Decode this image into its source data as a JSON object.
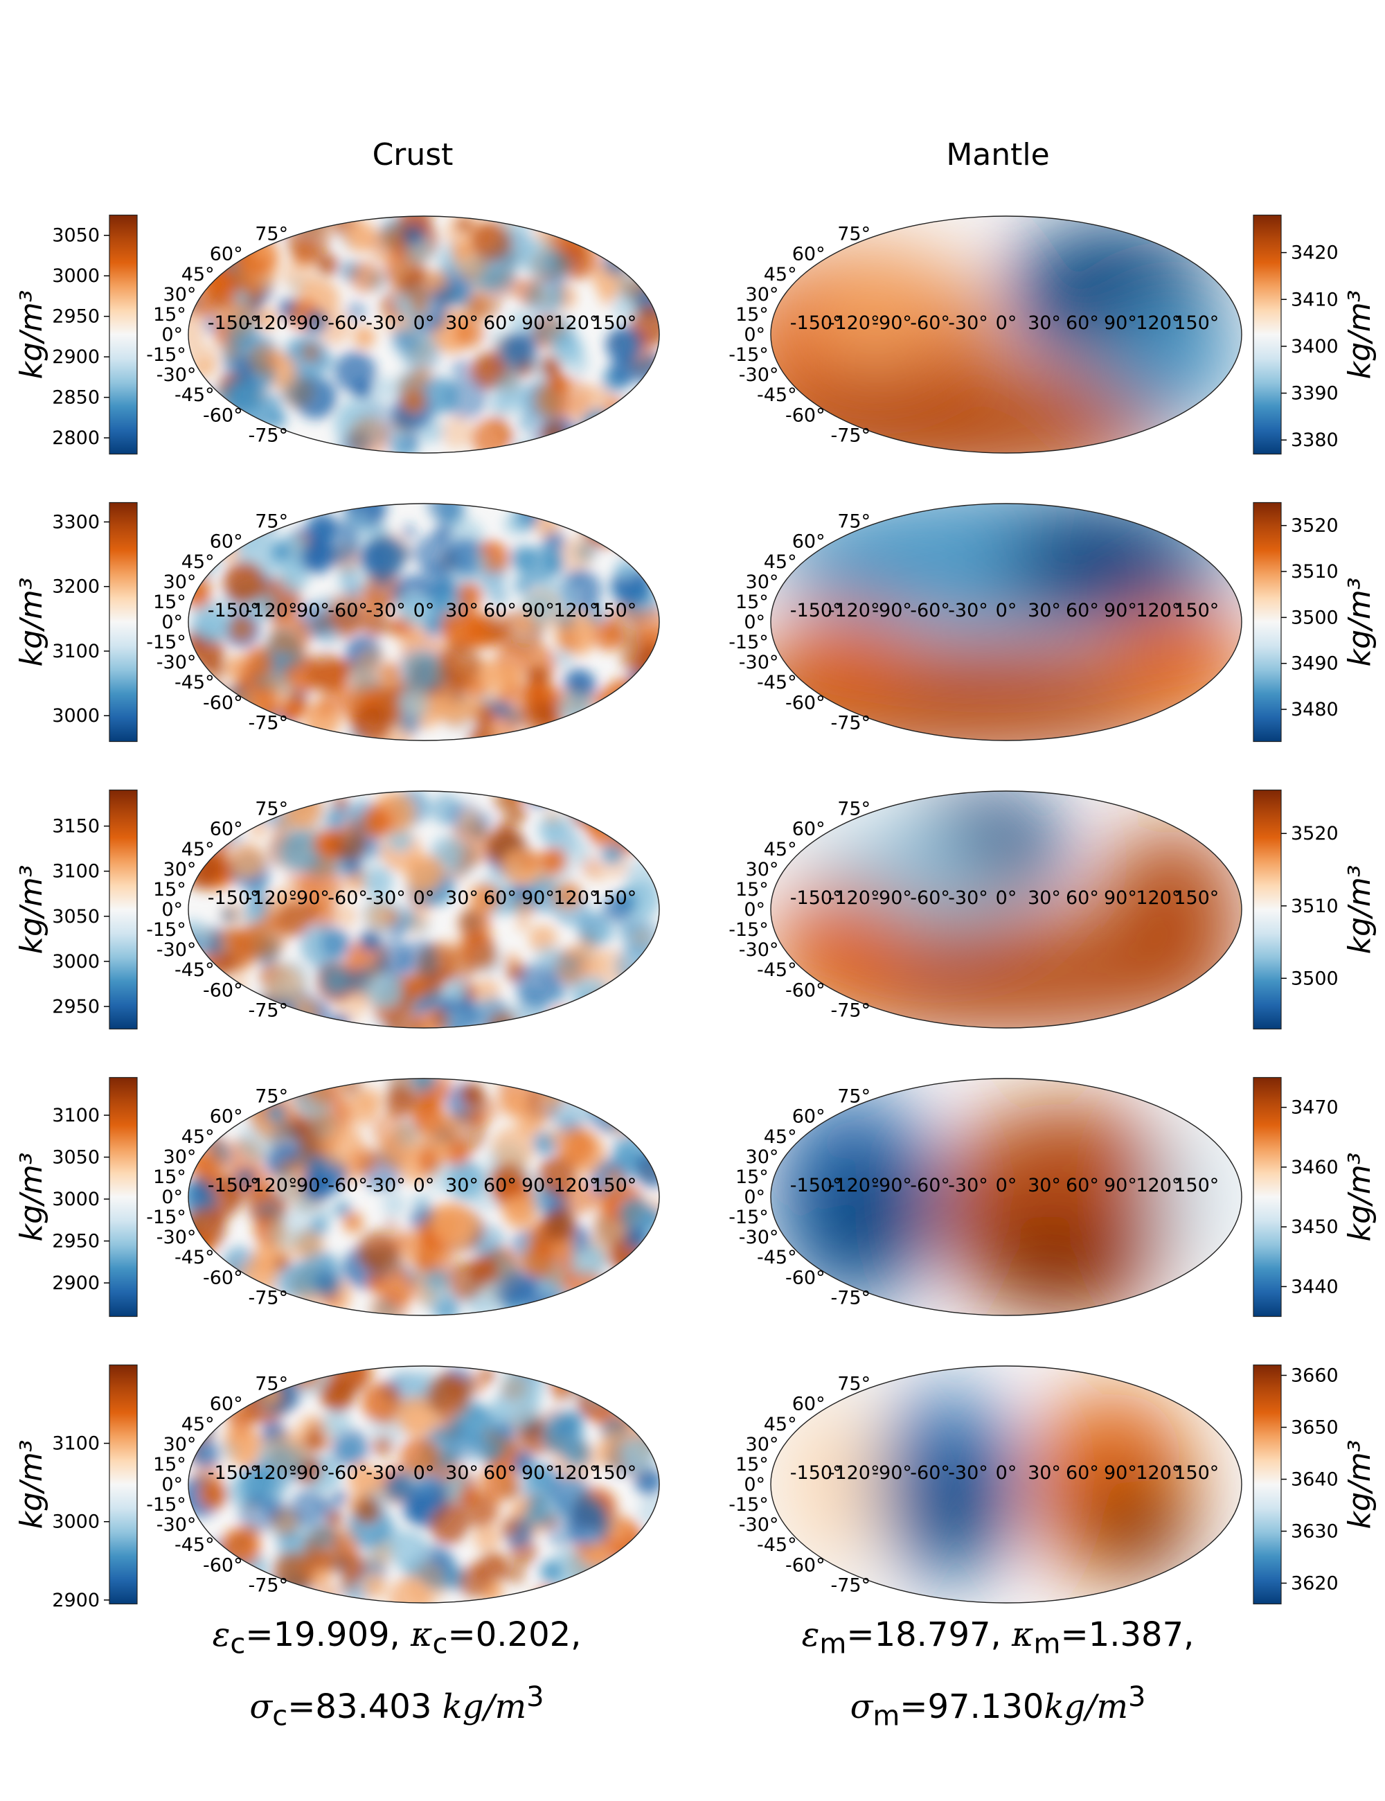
{
  "columns": {
    "left": "Crust",
    "right": "Mantle"
  },
  "colorbar_unit_label": "kg/m³",
  "colormap": {
    "low": "#053061",
    "mid": "#f7f7f7",
    "high": "#67001f",
    "stops": [
      "#053d7a",
      "#2166ac",
      "#4393c3",
      "#92c5de",
      "#d1e5f0",
      "#f7f7f7",
      "#fdd9b4",
      "#f4a261",
      "#e0620f",
      "#b3470a",
      "#7f2704"
    ]
  },
  "projection": "mollweide",
  "lon_labels": [
    "-150°",
    "-120°",
    "-90°",
    "-60°",
    "-30°",
    "0°",
    "30°",
    "60°",
    "90°",
    "120°",
    "150°"
  ],
  "lat_labels": [
    "75°",
    "60°",
    "45°",
    "30°",
    "15°",
    "0°",
    "-15°",
    "-30°",
    "-45°",
    "-60°",
    "-75°"
  ],
  "chart_data": [
    {
      "type": "heatmap",
      "column": "Crust",
      "row": 1,
      "colorbar": {
        "ticks": [
          2800,
          2850,
          2900,
          2950,
          3000,
          3050
        ],
        "range": [
          2780,
          3075
        ]
      }
    },
    {
      "type": "heatmap",
      "column": "Crust",
      "row": 2,
      "colorbar": {
        "ticks": [
          3000,
          3100,
          3200,
          3300
        ],
        "range": [
          2960,
          3330
        ]
      }
    },
    {
      "type": "heatmap",
      "column": "Crust",
      "row": 3,
      "colorbar": {
        "ticks": [
          2950,
          3000,
          3050,
          3100,
          3150
        ],
        "range": [
          2925,
          3190
        ]
      }
    },
    {
      "type": "heatmap",
      "column": "Crust",
      "row": 4,
      "colorbar": {
        "ticks": [
          2900,
          2950,
          3000,
          3050,
          3100
        ],
        "range": [
          2860,
          3145
        ]
      }
    },
    {
      "type": "heatmap",
      "column": "Crust",
      "row": 5,
      "colorbar": {
        "ticks": [
          2900,
          3000,
          3100
        ],
        "range": [
          2895,
          3200
        ]
      }
    },
    {
      "type": "heatmap",
      "column": "Mantle",
      "row": 1,
      "colorbar": {
        "ticks": [
          3380,
          3390,
          3400,
          3410,
          3420
        ],
        "range": [
          3377,
          3428
        ]
      }
    },
    {
      "type": "heatmap",
      "column": "Mantle",
      "row": 2,
      "colorbar": {
        "ticks": [
          3480,
          3490,
          3500,
          3510,
          3520
        ],
        "range": [
          3473,
          3525
        ]
      }
    },
    {
      "type": "heatmap",
      "column": "Mantle",
      "row": 3,
      "colorbar": {
        "ticks": [
          3500,
          3510,
          3520
        ],
        "range": [
          3493,
          3526
        ]
      }
    },
    {
      "type": "heatmap",
      "column": "Mantle",
      "row": 4,
      "colorbar": {
        "ticks": [
          3440,
          3450,
          3460,
          3470
        ],
        "range": [
          3435,
          3475
        ]
      }
    },
    {
      "type": "heatmap",
      "column": "Mantle",
      "row": 5,
      "colorbar": {
        "ticks": [
          3620,
          3630,
          3640,
          3650,
          3660
        ],
        "range": [
          3616,
          3662
        ]
      }
    }
  ],
  "captions": {
    "crust_line1": {
      "eps": "ε",
      "eps_sub": "c",
      "eps_val": "=19.909, ",
      "kap": "κ",
      "kap_sub": "c",
      "kap_val": "=0.202,"
    },
    "crust_line2": {
      "sig": "σ",
      "sig_sub": "c",
      "sig_val": "=83.403 ",
      "unit": "kg/m",
      "unit_sup": "3"
    },
    "mantle_line1": {
      "eps": "ε",
      "eps_sub": "m",
      "eps_val": "=18.797, ",
      "kap": "κ",
      "kap_sub": "m",
      "kap_val": "=1.387,"
    },
    "mantle_line2": {
      "sig": "σ",
      "sig_sub": "m",
      "sig_val": "=97.130",
      "unit": "kg/m",
      "unit_sup": "3"
    }
  }
}
